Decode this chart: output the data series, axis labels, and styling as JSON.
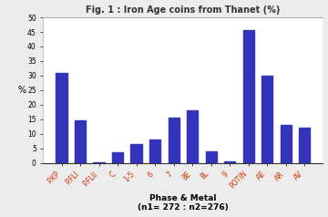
{
  "title": "Fig. 1 : Iron Age coins from Thanet (%)",
  "categories": [
    "P.KP",
    "P.FLI",
    "P.FLII",
    "C",
    "1-5",
    "6",
    "7",
    "8E",
    "8L",
    "9",
    "POTIN",
    "AE",
    "AR",
    "AV"
  ],
  "values": [
    31,
    14.5,
    0.2,
    3.5,
    6.5,
    8,
    15.5,
    18,
    4,
    0.5,
    45.5,
    30,
    13,
    12
  ],
  "bar_color": "#3333bb",
  "ylabel": "%",
  "xlabel_line1": "Phase & Metal",
  "xlabel_line2": "(n1= 272 : n2=276)",
  "ylim": [
    0,
    50
  ],
  "yticks": [
    0,
    5,
    10,
    15,
    20,
    25,
    30,
    35,
    40,
    45,
    50
  ],
  "bg_color": "#ececec",
  "plot_bg_color": "#ffffff",
  "tick_label_color": "#cc3300",
  "title_color": "#333333"
}
